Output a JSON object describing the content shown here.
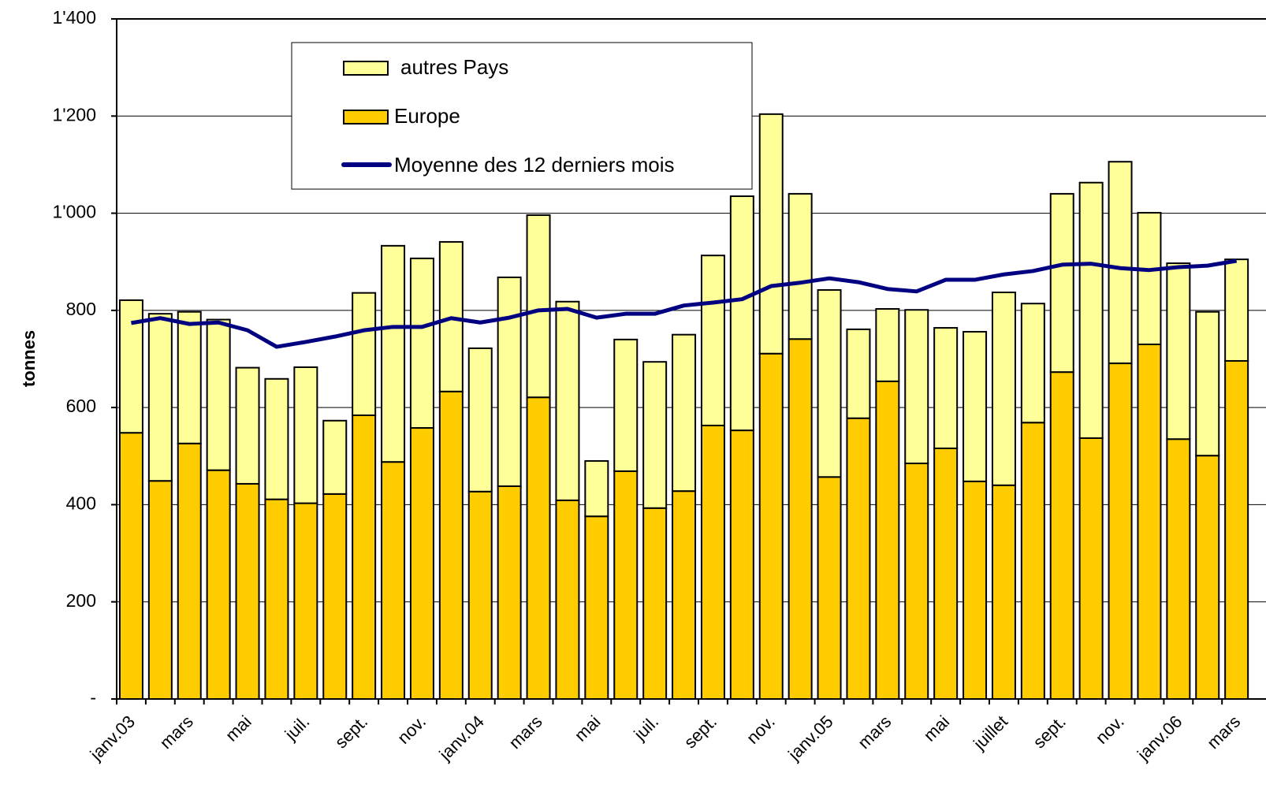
{
  "chart_data": {
    "type": "bar",
    "stacked": true,
    "y_label": "tonnes",
    "categories": [
      "janv.03",
      null,
      "mars",
      null,
      "mai",
      null,
      "juil.",
      null,
      "sept.",
      null,
      "nov.",
      null,
      "janv.04",
      null,
      "mars",
      null,
      "mai",
      null,
      "juil.",
      null,
      "sept.",
      null,
      "nov.",
      null,
      "janv.05",
      null,
      "mars",
      null,
      "mai",
      null,
      "juillet",
      null,
      "sept.",
      null,
      "nov.",
      null,
      "janv.06",
      null,
      "mars"
    ],
    "series": [
      {
        "name": "Europe",
        "type": "bar",
        "color": "#ffcc00",
        "values": [
          548,
          449,
          526,
          471,
          443,
          411,
          403,
          422,
          584,
          488,
          558,
          633,
          427,
          438,
          621,
          409,
          376,
          469,
          393,
          428,
          563,
          553,
          711,
          741,
          457,
          578,
          654,
          485,
          516,
          448,
          440,
          569,
          673,
          537,
          691,
          730,
          535,
          501,
          696
        ]
      },
      {
        "name": "autres Pays",
        "type": "bar",
        "color": "#ffff99",
        "values": [
          273,
          344,
          271,
          310,
          239,
          248,
          280,
          151,
          252,
          445,
          349,
          308,
          295,
          430,
          375,
          409,
          114,
          271,
          301,
          322,
          350,
          482,
          493,
          299,
          385,
          183,
          149,
          316,
          248,
          308,
          397,
          245,
          367,
          526,
          415,
          271,
          362,
          296,
          209
        ]
      },
      {
        "name": "Moyenne des 12 derniers mois",
        "type": "line",
        "color": "#000080",
        "values": [
          774,
          784,
          772,
          775,
          759,
          725,
          735,
          746,
          759,
          766,
          766,
          784,
          775,
          785,
          800,
          803,
          785,
          793,
          793,
          810,
          816,
          823,
          850,
          857,
          866,
          858,
          844,
          839,
          863,
          863,
          874,
          881,
          894,
          896,
          887,
          883,
          889,
          892,
          902
        ]
      }
    ],
    "ylim": [
      0,
      1400
    ],
    "yticks": [
      {
        "value": 0,
        "label": "-"
      },
      200,
      400,
      600,
      800,
      {
        "value": 1000,
        "label": "1'000"
      },
      {
        "value": 1200,
        "label": "1'200"
      },
      {
        "value": 1400,
        "label": "1'400"
      }
    ],
    "grid": true,
    "legend": "top"
  }
}
